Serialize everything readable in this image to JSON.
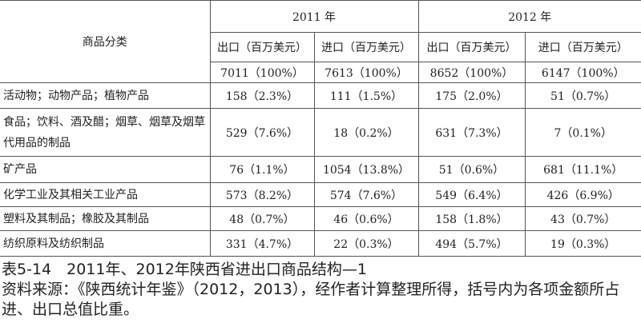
{
  "table": {
    "header": {
      "category": "商品分类",
      "years": [
        "2011 年",
        "2012 年"
      ],
      "subheaders": [
        "出口（百万美元）",
        "进口（百万美元）",
        "出口（百万美元）",
        "进口（百万美元）"
      ],
      "totals": [
        "7011（100%）",
        "7613（100%）",
        "8652（100%）",
        "6147（100%）"
      ]
    },
    "rows": [
      {
        "label": "活动物；动物产品；植物产品",
        "cells": [
          "158（2.3%）",
          "111（1.5%）",
          "175（2.0%）",
          "51（0.7%）"
        ]
      },
      {
        "label": "食品；饮料、酒及醋；烟草、烟草及烟草代用品的制品",
        "cells": [
          "529（7.6%）",
          "18（0.2%）",
          "631（7.3%）",
          "7（0.1%）"
        ]
      },
      {
        "label": "矿产品",
        "cells": [
          "76（1.1%）",
          "1054（13.8%）",
          "51（0.6%）",
          "681（11.1%）"
        ]
      },
      {
        "label": "化学工业及其相关工业产品",
        "cells": [
          "573（8.2%）",
          "574（7.6%）",
          "549（6.4%）",
          "426（6.9%）"
        ]
      },
      {
        "label": "塑料及其制品；橡胶及其制品",
        "cells": [
          "48（0.7%）",
          "46（0.6%）",
          "158（1.8%）",
          "43（0.7%）"
        ]
      },
      {
        "label": "纺织原料及纺织制品",
        "cells": [
          "331（4.7%）",
          "22（0.3%）",
          "494（5.7%）",
          "19（0.3%）"
        ]
      }
    ]
  },
  "caption": {
    "title": "表5-14　2011年、2012年陕西省进出口商品结构—1",
    "source": "资料来源：《陕西统计年鉴》（2012，2013），经作者计算整理所得，括号内为各项金额所占进、出口总值比重。"
  }
}
